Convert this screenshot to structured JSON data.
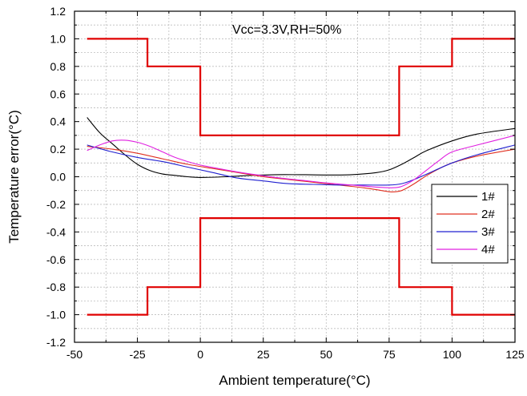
{
  "chart_data": {
    "type": "line",
    "annotation": "Vcc=3.3V,RH=50%",
    "xlabel": "Ambient temperature(°C)",
    "ylabel": "Temperature error(°C)",
    "xlim": [
      -50,
      125
    ],
    "ylim": [
      -1.2,
      1.2
    ],
    "xticks": [
      -50,
      -25,
      0,
      25,
      50,
      75,
      100,
      125
    ],
    "xtick_labels": [
      "-50",
      "-25",
      "0",
      "25",
      "50",
      "75",
      "100",
      "125"
    ],
    "yticks": [
      -1.2,
      -1.0,
      -0.8,
      -0.6,
      -0.4,
      -0.2,
      0.0,
      0.2,
      0.4,
      0.6,
      0.8,
      1.0,
      1.2
    ],
    "ytick_labels": [
      "-1.2",
      "-1.0",
      "-0.8",
      "-0.6",
      "-0.4",
      "-0.2",
      "0.0",
      "0.2",
      "0.4",
      "0.6",
      "0.8",
      "1.0",
      "1.2"
    ],
    "grid": true,
    "legend_position": "right",
    "limits": [
      {
        "color": "#e00000",
        "points": [
          [
            -45,
            1.0
          ],
          [
            -21,
            1.0
          ],
          [
            -21,
            0.8
          ],
          [
            0,
            0.8
          ],
          [
            0,
            0.3
          ],
          [
            79,
            0.3
          ],
          [
            79,
            0.8
          ],
          [
            100,
            0.8
          ],
          [
            100,
            1.0
          ],
          [
            125,
            1.0
          ]
        ]
      },
      {
        "color": "#e00000",
        "points": [
          [
            -45,
            -1.0
          ],
          [
            -21,
            -1.0
          ],
          [
            -21,
            -0.8
          ],
          [
            0,
            -0.8
          ],
          [
            0,
            -0.3
          ],
          [
            79,
            -0.3
          ],
          [
            79,
            -0.8
          ],
          [
            100,
            -0.8
          ],
          [
            100,
            -1.0
          ],
          [
            125,
            -1.0
          ]
        ]
      }
    ],
    "series": [
      {
        "name": "1#",
        "color": "#000000",
        "points": [
          [
            -45,
            0.43
          ],
          [
            -40,
            0.32
          ],
          [
            -35,
            0.24
          ],
          [
            -30,
            0.16
          ],
          [
            -25,
            0.09
          ],
          [
            -20,
            0.045
          ],
          [
            -15,
            0.02
          ],
          [
            -10,
            0.01
          ],
          [
            -5,
            0.0
          ],
          [
            0,
            -0.005
          ],
          [
            10,
            0.0
          ],
          [
            20,
            0.01
          ],
          [
            30,
            0.015
          ],
          [
            40,
            0.015
          ],
          [
            50,
            0.013
          ],
          [
            60,
            0.015
          ],
          [
            70,
            0.03
          ],
          [
            75,
            0.05
          ],
          [
            80,
            0.09
          ],
          [
            85,
            0.14
          ],
          [
            90,
            0.19
          ],
          [
            100,
            0.26
          ],
          [
            110,
            0.31
          ],
          [
            125,
            0.35
          ]
        ]
      },
      {
        "name": "2#",
        "color": "#e03020",
        "points": [
          [
            -45,
            0.22
          ],
          [
            -35,
            0.2
          ],
          [
            -25,
            0.17
          ],
          [
            -15,
            0.13
          ],
          [
            -5,
            0.09
          ],
          [
            5,
            0.06
          ],
          [
            15,
            0.03
          ],
          [
            25,
            0.0
          ],
          [
            35,
            -0.02
          ],
          [
            45,
            -0.04
          ],
          [
            55,
            -0.06
          ],
          [
            65,
            -0.08
          ],
          [
            72,
            -0.1
          ],
          [
            76,
            -0.11
          ],
          [
            80,
            -0.1
          ],
          [
            85,
            -0.05
          ],
          [
            90,
            0.01
          ],
          [
            95,
            0.06
          ],
          [
            100,
            0.1
          ],
          [
            110,
            0.15
          ],
          [
            125,
            0.2
          ]
        ]
      },
      {
        "name": "3#",
        "color": "#2020d0",
        "points": [
          [
            -45,
            0.23
          ],
          [
            -35,
            0.18
          ],
          [
            -25,
            0.14
          ],
          [
            -15,
            0.11
          ],
          [
            -5,
            0.07
          ],
          [
            5,
            0.03
          ],
          [
            15,
            -0.01
          ],
          [
            25,
            -0.03
          ],
          [
            35,
            -0.05
          ],
          [
            45,
            -0.055
          ],
          [
            55,
            -0.06
          ],
          [
            65,
            -0.06
          ],
          [
            75,
            -0.06
          ],
          [
            80,
            -0.05
          ],
          [
            85,
            -0.02
          ],
          [
            90,
            0.02
          ],
          [
            100,
            0.1
          ],
          [
            110,
            0.16
          ],
          [
            125,
            0.23
          ]
        ]
      },
      {
        "name": "4#",
        "color": "#e020e0",
        "points": [
          [
            -45,
            0.19
          ],
          [
            -40,
            0.23
          ],
          [
            -35,
            0.26
          ],
          [
            -30,
            0.265
          ],
          [
            -25,
            0.25
          ],
          [
            -20,
            0.22
          ],
          [
            -15,
            0.18
          ],
          [
            -10,
            0.14
          ],
          [
            -5,
            0.11
          ],
          [
            0,
            0.085
          ],
          [
            10,
            0.05
          ],
          [
            20,
            0.02
          ],
          [
            30,
            -0.005
          ],
          [
            40,
            -0.025
          ],
          [
            50,
            -0.045
          ],
          [
            60,
            -0.06
          ],
          [
            70,
            -0.075
          ],
          [
            76,
            -0.08
          ],
          [
            80,
            -0.07
          ],
          [
            85,
            -0.02
          ],
          [
            90,
            0.05
          ],
          [
            95,
            0.12
          ],
          [
            100,
            0.18
          ],
          [
            110,
            0.23
          ],
          [
            125,
            0.3
          ]
        ]
      }
    ]
  }
}
